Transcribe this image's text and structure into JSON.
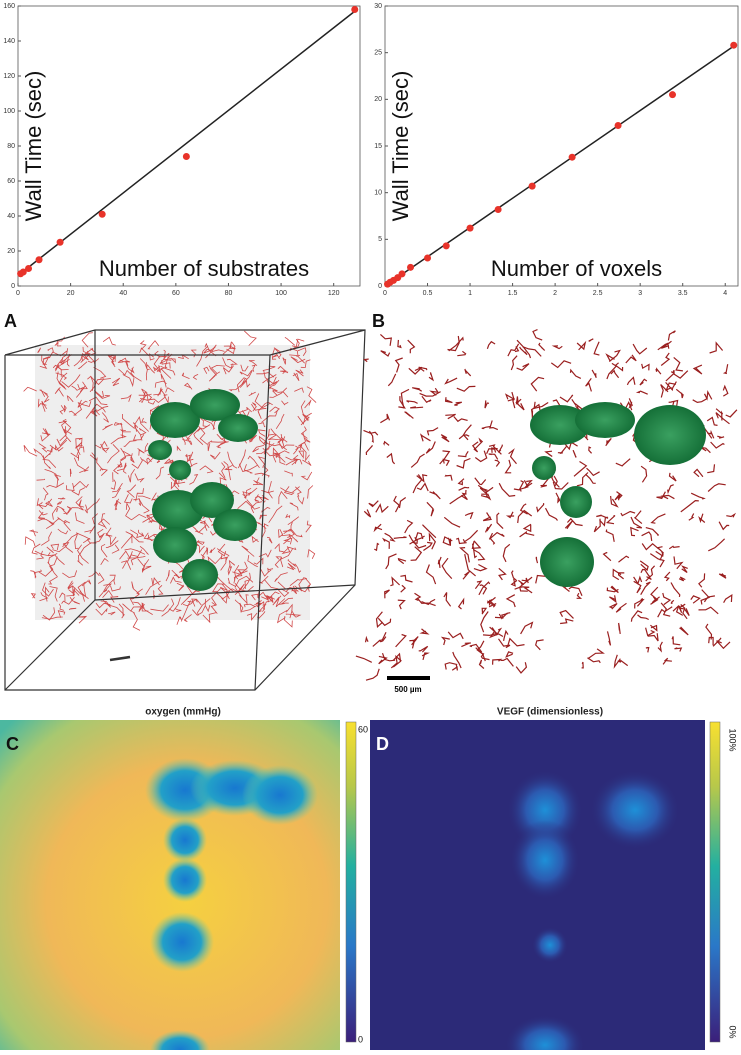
{
  "chart_data": [
    {
      "type": "scatter",
      "xlabel": "Number of substrates",
      "ylabel": "Wall Time (sec)",
      "x": [
        1,
        2,
        4,
        8,
        16,
        32,
        64,
        128
      ],
      "values": [
        7,
        8,
        10,
        15,
        25,
        41,
        74,
        158
      ],
      "color": "#e8332a",
      "fit": {
        "x": [
          0,
          128
        ],
        "values": [
          6,
          157
        ],
        "color": "#222222"
      },
      "xlim": [
        0,
        130
      ],
      "ylim": [
        0,
        160
      ],
      "xticks": [
        0,
        20,
        40,
        60,
        80,
        100,
        120
      ],
      "yticks": [
        0,
        20,
        40,
        60,
        80,
        100,
        120,
        140,
        160
      ]
    },
    {
      "type": "scatter",
      "xlabel": "Number of voxels",
      "ylabel": "Wall Time (sec)",
      "x": [
        0.03,
        0.06,
        0.1,
        0.15,
        0.2,
        0.3,
        0.5,
        0.72,
        1.0,
        1.33,
        1.73,
        2.2,
        2.74,
        3.38,
        4.1
      ],
      "values": [
        0.2,
        0.4,
        0.6,
        0.9,
        1.3,
        2.0,
        3.0,
        4.3,
        6.2,
        8.2,
        10.7,
        13.8,
        17.2,
        20.5,
        25.8
      ],
      "color": "#e8332a",
      "fit": {
        "x": [
          0,
          4.1
        ],
        "values": [
          0,
          25.7
        ],
        "color": "#222222"
      },
      "xlim": [
        0,
        4.15
      ],
      "ylim": [
        0,
        30
      ],
      "xticks": [
        0,
        0.5,
        1,
        1.5,
        2,
        2.5,
        3,
        3.5,
        4
      ],
      "yticks": [
        0,
        5,
        10,
        15,
        20,
        25,
        30
      ]
    }
  ],
  "panels": {
    "a": {
      "letter": "A"
    },
    "b": {
      "letter": "B",
      "scale": "500 µm"
    },
    "c": {
      "letter": "C",
      "title": "oxygen (mmHg)",
      "cb_top": "60",
      "cb_bottom": "0"
    },
    "d": {
      "letter": "D",
      "title": "VEGF (dimensionless)",
      "cb_top": "100%",
      "cb_bottom": "0%"
    }
  }
}
